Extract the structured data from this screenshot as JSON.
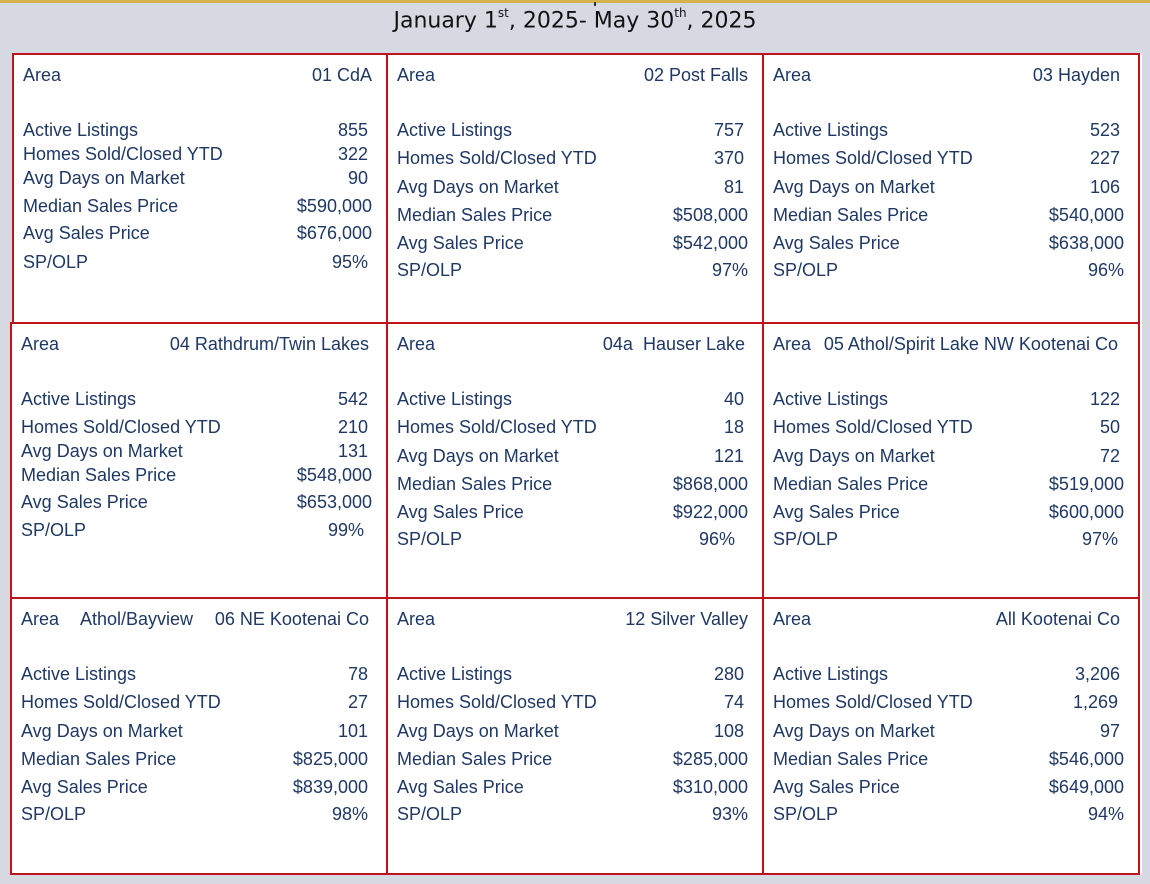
{
  "header": {
    "title_parts": [
      "January 1",
      "st",
      ", 2025- May 30",
      "th",
      ", 2025"
    ]
  },
  "labels": {
    "area": "Area",
    "active_listings": "Active Listings",
    "homes_sold": "Homes Sold/Closed YTD",
    "avg_days": "Avg Days on Market",
    "median_price": "Median Sales Price",
    "avg_price": "Avg Sales Price",
    "sp_olp": "SP/OLP"
  },
  "areas": [
    {
      "name": "01 CdA",
      "active_listings": "855",
      "homes_sold": "322",
      "avg_days": "90",
      "median_price": "$590,000",
      "avg_price": "$676,000",
      "sp_olp": "95%"
    },
    {
      "name": "02 Post Falls",
      "active_listings": "757",
      "homes_sold": "370",
      "avg_days": "81",
      "median_price": "$508,000",
      "avg_price": "$542,000",
      "sp_olp": "97%"
    },
    {
      "name": "03 Hayden",
      "active_listings": "523",
      "homes_sold": "227",
      "avg_days": "106",
      "median_price": "$540,000",
      "avg_price": "$638,000",
      "sp_olp": "96%"
    },
    {
      "name": "04 Rathdrum/Twin Lakes",
      "active_listings": "542",
      "homes_sold": "210",
      "avg_days": "131",
      "median_price": "$548,000",
      "avg_price": "$653,000",
      "sp_olp": "99%"
    },
    {
      "name": "04a  Hauser Lake",
      "active_listings": "40",
      "homes_sold": "18",
      "avg_days": "121",
      "median_price": "$868,000",
      "avg_price": "$922,000",
      "sp_olp": "96%"
    },
    {
      "name": "05 Athol/Spirit Lake NW Kootenai Co",
      "active_listings": "122",
      "homes_sold": "50",
      "avg_days": "72",
      "median_price": "$519,000",
      "avg_price": "$600,000",
      "sp_olp": "97%"
    },
    {
      "sub": "Athol/Bayview",
      "name": "06 NE Kootenai Co",
      "active_listings": "78",
      "homes_sold": "27",
      "avg_days": "101",
      "median_price": "$825,000",
      "avg_price": "$839,000",
      "sp_olp": "98%"
    },
    {
      "name": "12 Silver Valley",
      "active_listings": "280",
      "homes_sold": "74",
      "avg_days": "108",
      "median_price": "$285,000",
      "avg_price": "$310,000",
      "sp_olp": "93%"
    },
    {
      "name": "All Kootenai Co",
      "active_listings": "3,206",
      "homes_sold": "1,269",
      "avg_days": "97",
      "median_price": "$546,000",
      "avg_price": "$649,000",
      "sp_olp": "94%"
    }
  ]
}
